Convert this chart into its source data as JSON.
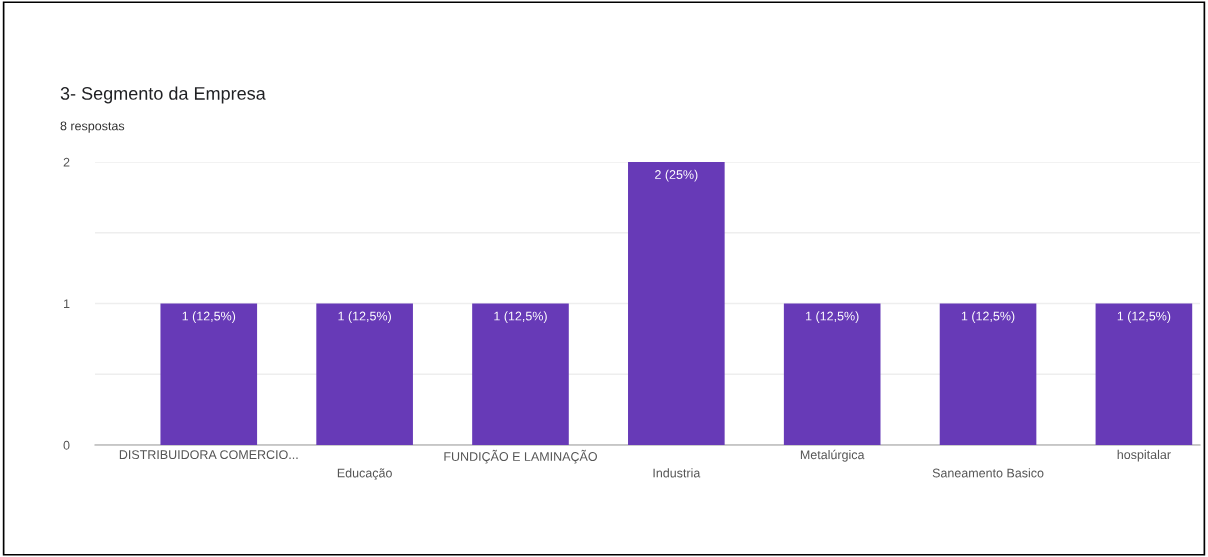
{
  "chart_data": {
    "type": "bar",
    "title": "3- Segmento da Empresa",
    "subtitle": "8 respostas",
    "categories": [
      "DISTRIBUIDORA COMERCIO...",
      "Educação",
      "FUNDIÇÃO E LAMINAÇÃO",
      "Industria",
      "Metalúrgica",
      "Saneamento Basico",
      "hospitalar"
    ],
    "values": [
      1,
      1,
      1,
      2,
      1,
      1,
      1
    ],
    "value_labels": [
      "1 (12,5%)",
      "1 (12,5%)",
      "1 (12,5%)",
      "2 (25%)",
      "1 (12,5%)",
      "1 (12,5%)",
      "1 (12,5%)"
    ],
    "color": "#673ab7",
    "ylim": [
      0,
      2
    ],
    "yticks": [
      0,
      {
        "value": 0.5,
        "label": null
      },
      1,
      {
        "value": 1.5,
        "label": null
      },
      2
    ],
    "grid": "y"
  }
}
